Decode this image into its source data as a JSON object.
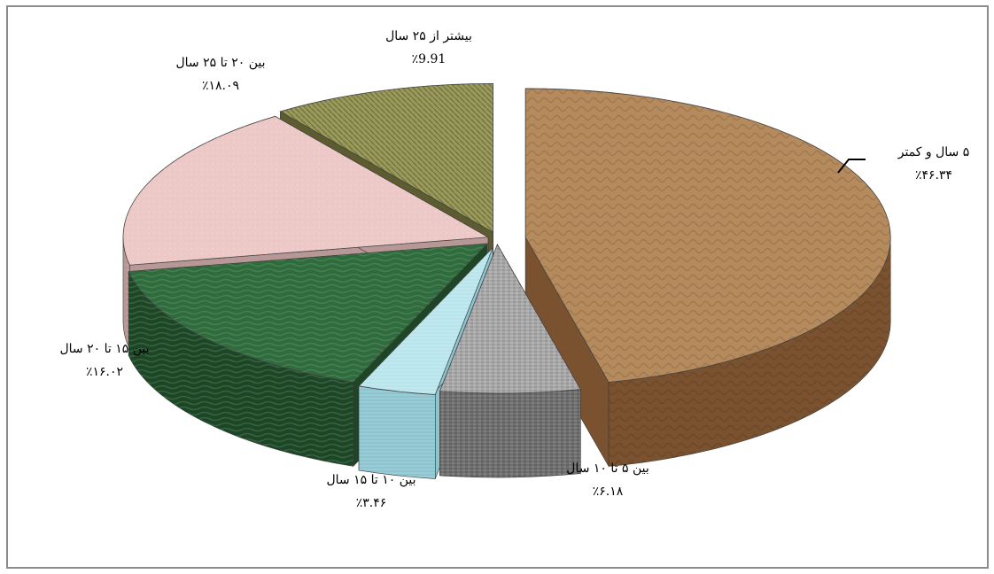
{
  "chart_data": {
    "type": "pie",
    "title": "",
    "slices": [
      {
        "label": "۵ سال و کمتر",
        "value": 46.34,
        "value_label": "٪۴۶.۳۴",
        "color": "#b58a5c",
        "side": "#7a5230"
      },
      {
        "label": "بین ۵ تا ۱۰ سال",
        "value": 6.18,
        "value_label": "٪۶.۱۸",
        "color": "#a8a8a8",
        "side": "#6e6e6e"
      },
      {
        "label": "بین ۱۰ تا ۱۵ سال",
        "value": 3.46,
        "value_label": "٪۳.۴۶",
        "color": "#b8e4ec",
        "side": "#8cc4d0"
      },
      {
        "label": "بین ۱۵ تا ۲۰ سال",
        "value": 16.02,
        "value_label": "٪۱۶.۰۲",
        "color": "#2f6b3c",
        "side": "#1d4626"
      },
      {
        "label": "بین ۲۰ تا ۲۵ سال",
        "value": 18.09,
        "value_label": "٪۱۸.۰۹",
        "color": "#ecc8c6",
        "side": "#b89896"
      },
      {
        "label": "بیشتر از ۲۵ سال",
        "value": 9.91,
        "value_label": "٪9.91",
        "color": "#9a9a5a",
        "side": "#5c5c30"
      }
    ],
    "legend": "none"
  }
}
